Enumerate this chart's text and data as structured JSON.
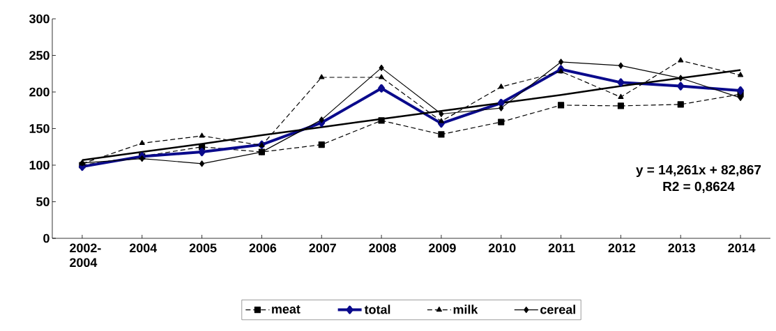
{
  "chart_data": {
    "type": "line",
    "categories": [
      "2002-2004",
      "2004",
      "2005",
      "2006",
      "2007",
      "2008",
      "2009",
      "2010",
      "2011",
      "2012",
      "2013",
      "2014"
    ],
    "series": [
      {
        "name": "meat",
        "color": "#000000",
        "marker": "square",
        "line_style": "dashed",
        "values": [
          100,
          112,
          125,
          118,
          128,
          161,
          142,
          159,
          182,
          181,
          183,
          197
        ]
      },
      {
        "name": "total",
        "color": "#0a0a8c",
        "marker": "diamond",
        "line_style": "solid",
        "values": [
          98,
          112,
          118,
          128,
          158,
          205,
          157,
          185,
          231,
          213,
          208,
          202
        ]
      },
      {
        "name": "milk",
        "color": "#000000",
        "marker": "triangle",
        "line_style": "dashed",
        "values": [
          102,
          130,
          140,
          127,
          220,
          220,
          160,
          207,
          228,
          193,
          243,
          223
        ]
      },
      {
        "name": "cereal",
        "color": "#000000",
        "marker": "diamond",
        "line_style": "solid",
        "values": [
          103,
          109,
          102,
          118,
          162,
          233,
          170,
          178,
          241,
          236,
          219,
          192
        ]
      },
      {
        "type": "line",
        "color": "#000000",
        "marker": "none",
        "line_style": "solid",
        "values": [
          107,
          118,
          129,
          141,
          152,
          163,
          174,
          185,
          196,
          208,
          219,
          230
        ]
      }
    ],
    "ylim": [
      0,
      300
    ],
    "yticks": [
      0,
      50,
      100,
      150,
      200,
      250,
      300
    ],
    "grid": false,
    "legend": "bottom",
    "annotations": [
      "y = 14,261x + 82,867",
      "R2 = 0,8624"
    ]
  }
}
